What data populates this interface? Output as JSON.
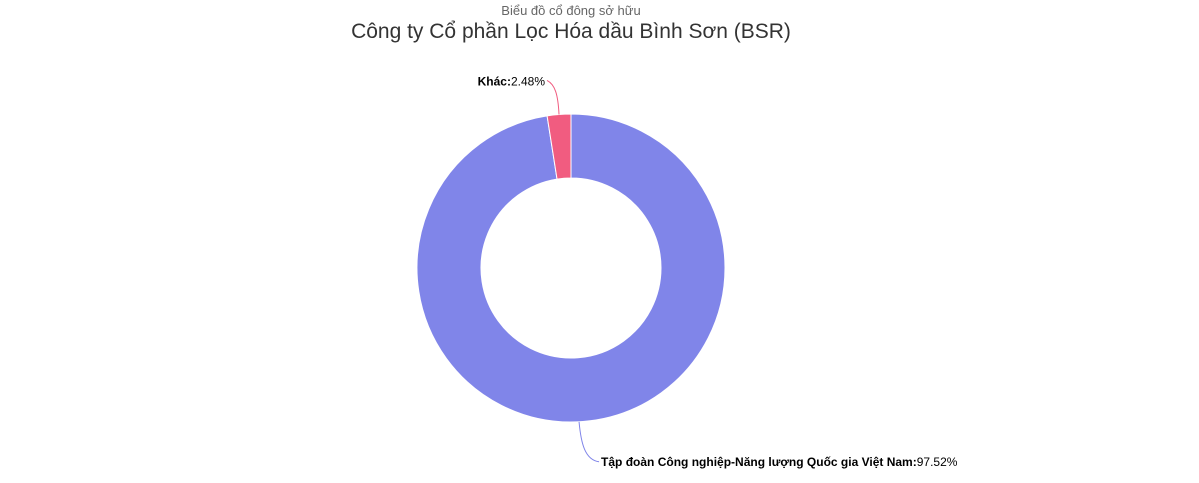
{
  "chart": {
    "subtitle": "Biểu đồ cổ đông sở hữu",
    "title": "Công ty Cổ phần Lọc Hóa dầu Bình Sơn (BSR)"
  },
  "chart_data": {
    "type": "pie",
    "variant": "donut",
    "subtitle": "Biểu đồ cổ đông sở hữu",
    "title": "Công ty Cổ phần Lọc Hóa dầu Bình Sơn (BSR)",
    "slices": [
      {
        "name": "Tập đoàn Công nghiệp-Năng lượng Quốc gia Việt Nam",
        "value": 97.52,
        "label": "97.52%",
        "color": "#8085e9"
      },
      {
        "name": "Khác",
        "value": 2.48,
        "label": "2.48%",
        "color": "#f15c80"
      }
    ],
    "legend": "none",
    "data_labels": "outside with connectors"
  }
}
